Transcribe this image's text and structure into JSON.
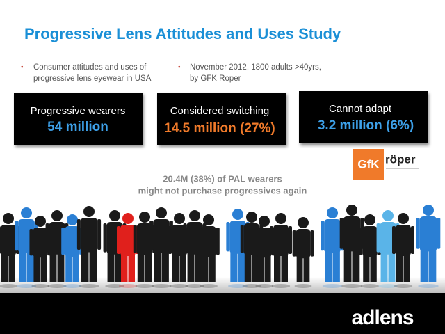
{
  "title": "Progressive Lens Attitudes and Uses Study",
  "bullets": [
    {
      "lines": [
        "Consumer attitudes and uses of",
        "progressive lens eyewear in USA"
      ]
    },
    {
      "lines": [
        "November 2012, 1800 adults >40yrs,",
        "by GFK Roper"
      ]
    }
  ],
  "boxes": [
    {
      "label": "Progressive wearers",
      "value": "54 million"
    },
    {
      "label": "Considered switching",
      "value": "14.5 million (27%)"
    },
    {
      "label": "Cannot adapt",
      "value": "3.2 million (6%)"
    }
  ],
  "callout": {
    "lines": [
      "20.4M (38%) of PAL wearers",
      "might not purchase progressives again"
    ]
  },
  "logos": {
    "gfk": "GfK",
    "roper": "röper",
    "brand": "adlens"
  }
}
